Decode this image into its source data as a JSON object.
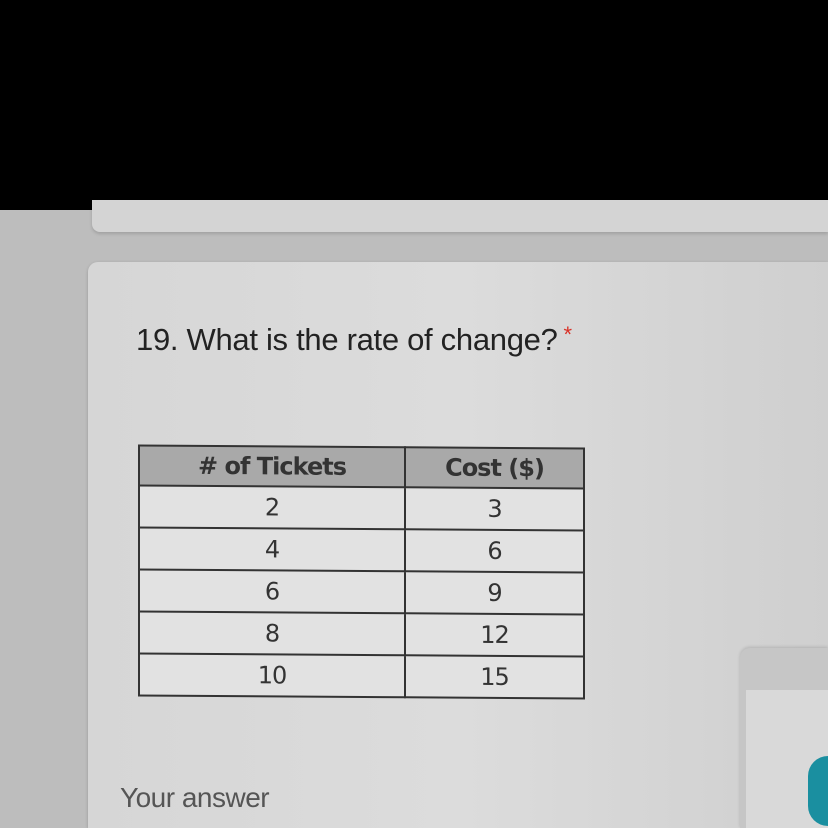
{
  "question": {
    "number_title": "19. What is the rate of change?",
    "required_marker": "*"
  },
  "table": {
    "headers": [
      "# of Tickets",
      "Cost ($)"
    ],
    "rows": [
      [
        "2",
        "3"
      ],
      [
        "4",
        "6"
      ],
      [
        "6",
        "9"
      ],
      [
        "8",
        "12"
      ],
      [
        "10",
        "15"
      ]
    ]
  },
  "answer": {
    "placeholder": "Your answer"
  },
  "colors": {
    "required": "#d93025",
    "fab": "#1a8fa0"
  }
}
